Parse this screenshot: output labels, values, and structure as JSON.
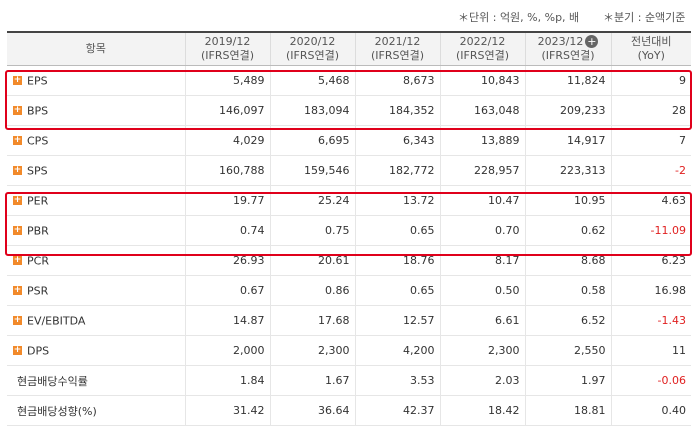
{
  "notes": {
    "unit": "＊단위 : 억원, %, %p, 배",
    "period": "＊분기 : 순액기준"
  },
  "header": {
    "item": "항목",
    "columns": [
      {
        "line1": "2019/12",
        "line2": "(IFRS연결)"
      },
      {
        "line1": "2020/12",
        "line2": "(IFRS연결)"
      },
      {
        "line1": "2021/12",
        "line2": "(IFRS연결)"
      },
      {
        "line1": "2022/12",
        "line2": "(IFRS연결)"
      },
      {
        "line1": "2023/12",
        "line2": "(IFRS연결)"
      }
    ],
    "expand_icon": "+",
    "yoy": {
      "line1": "전년대비",
      "line2": "(YoY)"
    }
  },
  "expand_icon_glyph": "+",
  "rows": [
    {
      "label": "EPS",
      "expandable": true,
      "values": [
        "5,489",
        "5,468",
        "8,673",
        "10,843",
        "11,824"
      ],
      "yoy": "9",
      "yoy_negative": false
    },
    {
      "label": "BPS",
      "expandable": true,
      "values": [
        "146,097",
        "183,094",
        "184,352",
        "163,048",
        "209,233"
      ],
      "yoy": "28",
      "yoy_negative": false
    },
    {
      "label": "CPS",
      "expandable": true,
      "values": [
        "4,029",
        "6,695",
        "6,343",
        "13,889",
        "14,917"
      ],
      "yoy": "7",
      "yoy_negative": false
    },
    {
      "label": "SPS",
      "expandable": true,
      "values": [
        "160,788",
        "159,546",
        "182,772",
        "228,957",
        "223,313"
      ],
      "yoy": "-2",
      "yoy_negative": true
    },
    {
      "label": "PER",
      "expandable": true,
      "values": [
        "19.77",
        "25.24",
        "13.72",
        "10.47",
        "10.95"
      ],
      "yoy": "4.63",
      "yoy_negative": false
    },
    {
      "label": "PBR",
      "expandable": true,
      "values": [
        "0.74",
        "0.75",
        "0.65",
        "0.70",
        "0.62"
      ],
      "yoy": "-11.09",
      "yoy_negative": true
    },
    {
      "label": "PCR",
      "expandable": true,
      "values": [
        "26.93",
        "20.61",
        "18.76",
        "8.17",
        "8.68"
      ],
      "yoy": "6.23",
      "yoy_negative": false
    },
    {
      "label": "PSR",
      "expandable": true,
      "values": [
        "0.67",
        "0.86",
        "0.65",
        "0.50",
        "0.58"
      ],
      "yoy": "16.98",
      "yoy_negative": false
    },
    {
      "label": "EV/EBITDA",
      "expandable": true,
      "values": [
        "14.87",
        "17.68",
        "12.57",
        "6.61",
        "6.52"
      ],
      "yoy": "-1.43",
      "yoy_negative": true
    },
    {
      "label": "DPS",
      "expandable": true,
      "values": [
        "2,000",
        "2,300",
        "4,200",
        "2,300",
        "2,550"
      ],
      "yoy": "11",
      "yoy_negative": false
    },
    {
      "label": "현금배당수익률",
      "expandable": false,
      "values": [
        "1.84",
        "1.67",
        "3.53",
        "2.03",
        "1.97"
      ],
      "yoy": "-0.06",
      "yoy_negative": true
    },
    {
      "label": "현금배당성향(%)",
      "expandable": false,
      "values": [
        "31.42",
        "36.64",
        "42.37",
        "18.42",
        "18.81"
      ],
      "yoy": "0.40",
      "yoy_negative": false
    }
  ],
  "colors": {
    "highlight": "#e0001b",
    "negative": "#e01f1f",
    "expand_icon": "#f28a2a",
    "header_bg": "#f3f3f3"
  }
}
